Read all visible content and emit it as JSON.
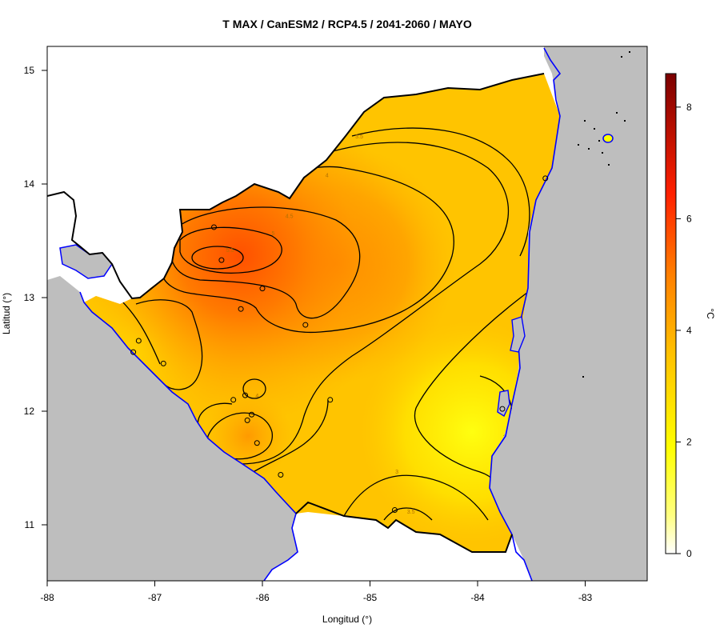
{
  "title": "T MAX / CanESM2 / RCP4.5 / 2041-2060 / MAYO",
  "x_axis": {
    "label": "Longitud (°)",
    "ticks": [
      -88,
      -87,
      -86,
      -85,
      -84,
      -83
    ],
    "tick_labels": [
      "-88",
      "-87",
      "-86",
      "-85",
      "-84",
      "-83"
    ],
    "range": [
      -88,
      -82.4
    ]
  },
  "y_axis": {
    "label": "Latitud (°)",
    "ticks": [
      11,
      12,
      13,
      14,
      15
    ],
    "tick_labels": [
      "11",
      "12",
      "13",
      "14",
      "15"
    ],
    "range": [
      10.5,
      15.2
    ]
  },
  "colorbar": {
    "unit": "°C",
    "ticks": [
      0,
      2,
      4,
      6,
      8
    ],
    "tick_labels": [
      "0",
      "2",
      "4",
      "6",
      "8"
    ],
    "range": [
      0,
      8.6
    ],
    "colors": [
      "#ffffff",
      "#ffff00",
      "#ffc000",
      "#ff8000",
      "#ff2000",
      "#7a0000"
    ]
  },
  "colors": {
    "ocean": "#bebebe",
    "coast": "#0000ff",
    "border": "#000000",
    "contour": "#000000"
  },
  "chart_data": {
    "type": "heatmap",
    "variable": "T MAX",
    "contour_levels": [
      2.5,
      3,
      3.5,
      4,
      4.5,
      5,
      5.5
    ],
    "contour_labels": [
      {
        "text": "5.5",
        "lon": -86.3,
        "lat": 13.4
      },
      {
        "text": "5",
        "lon": -85.9,
        "lat": 13.55
      },
      {
        "text": "4.5",
        "lon": -85.75,
        "lat": 13.7
      },
      {
        "text": "4",
        "lon": -85.4,
        "lat": 14.06
      },
      {
        "text": "3.5",
        "lon": -85.1,
        "lat": 14.4
      },
      {
        "text": "4",
        "lon": -86.05,
        "lat": 12.12
      },
      {
        "text": "3",
        "lon": -84.75,
        "lat": 11.45
      },
      {
        "text": "3.5",
        "lon": -84.62,
        "lat": 11.1
      }
    ],
    "stations": [
      {
        "lon": -86.45,
        "lat": 13.62
      },
      {
        "lon": -86.38,
        "lat": 13.33
      },
      {
        "lon": -86.0,
        "lat": 13.08
      },
      {
        "lon": -86.2,
        "lat": 12.9
      },
      {
        "lon": -85.6,
        "lat": 12.76
      },
      {
        "lon": -87.15,
        "lat": 12.62
      },
      {
        "lon": -87.2,
        "lat": 12.52
      },
      {
        "lon": -86.92,
        "lat": 12.42
      },
      {
        "lon": -86.16,
        "lat": 12.14
      },
      {
        "lon": -86.27,
        "lat": 12.1
      },
      {
        "lon": -85.37,
        "lat": 12.1
      },
      {
        "lon": -86.1,
        "lat": 11.97
      },
      {
        "lon": -86.14,
        "lat": 11.92
      },
      {
        "lon": -86.05,
        "lat": 11.72
      },
      {
        "lon": -85.83,
        "lat": 11.44
      },
      {
        "lon": -84.77,
        "lat": 11.13
      },
      {
        "lon": -83.77,
        "lat": 12.02
      },
      {
        "lon": -83.37,
        "lat": 14.05
      }
    ]
  }
}
